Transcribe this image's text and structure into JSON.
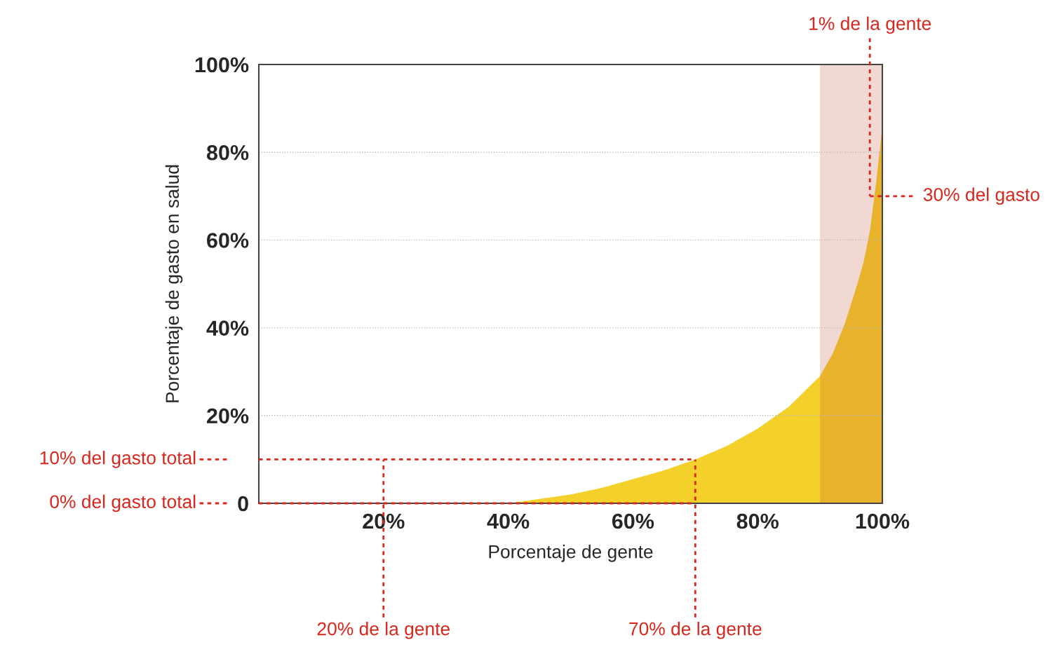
{
  "chart_data": {
    "type": "area",
    "xlabel": "Porcentaje de gente",
    "ylabel": "Porcentaje de gasto en salud",
    "xlim": [
      0,
      100
    ],
    "ylim": [
      0,
      100
    ],
    "xticks": [
      {
        "value": 20,
        "label": "20%"
      },
      {
        "value": 40,
        "label": "40%"
      },
      {
        "value": 60,
        "label": "60%"
      },
      {
        "value": 80,
        "label": "80%"
      },
      {
        "value": 100,
        "label": "100%"
      }
    ],
    "yticks": [
      0,
      {
        "value": 20,
        "label": "20%"
      },
      {
        "value": 40,
        "label": "40%"
      },
      {
        "value": 60,
        "label": "60%"
      },
      {
        "value": 80,
        "label": "80%"
      },
      {
        "value": 100,
        "label": "100%"
      }
    ],
    "grid": "y",
    "series": [
      {
        "color": "#f4d12a",
        "x": [
          40,
          45,
          50,
          55,
          60,
          65,
          70,
          75,
          80,
          85,
          90
        ],
        "values": [
          0,
          1,
          2,
          3.5,
          5.5,
          7.5,
          10,
          13,
          17,
          22,
          29
        ]
      },
      {
        "color": "#e8b22a",
        "x": [
          90,
          92,
          94,
          96,
          97,
          98,
          99,
          100
        ],
        "values": [
          29,
          34,
          41,
          50,
          55,
          62,
          73,
          86
        ]
      }
    ],
    "bands": [
      {
        "axis": "x",
        "from": 90,
        "to": 100,
        "color": "#f2d8d2"
      }
    ],
    "ref_lines": [
      {
        "axis": "y",
        "value": 10,
        "label": "10% del gasto total",
        "color": "#d9261c",
        "line_style": "dotted"
      },
      {
        "axis": "y",
        "value": 0,
        "label": "0% del gasto total",
        "color": "#d9261c",
        "line_style": "dotted"
      },
      {
        "axis": "x",
        "value": 20,
        "label": "20% de la gente",
        "color": "#d9261c",
        "line_style": "dotted"
      },
      {
        "axis": "x",
        "value": 70,
        "label": "70% de la gente",
        "color": "#d9261c",
        "line_style": "dotted"
      },
      {
        "axis": "x",
        "value": 98,
        "label": "1% de la gente",
        "color": "#d9261c",
        "line_style": "dotted"
      },
      {
        "axis": "y",
        "value": 70,
        "label": "30% del gasto",
        "color": "#d9261c",
        "line_style": "dotted"
      }
    ]
  }
}
